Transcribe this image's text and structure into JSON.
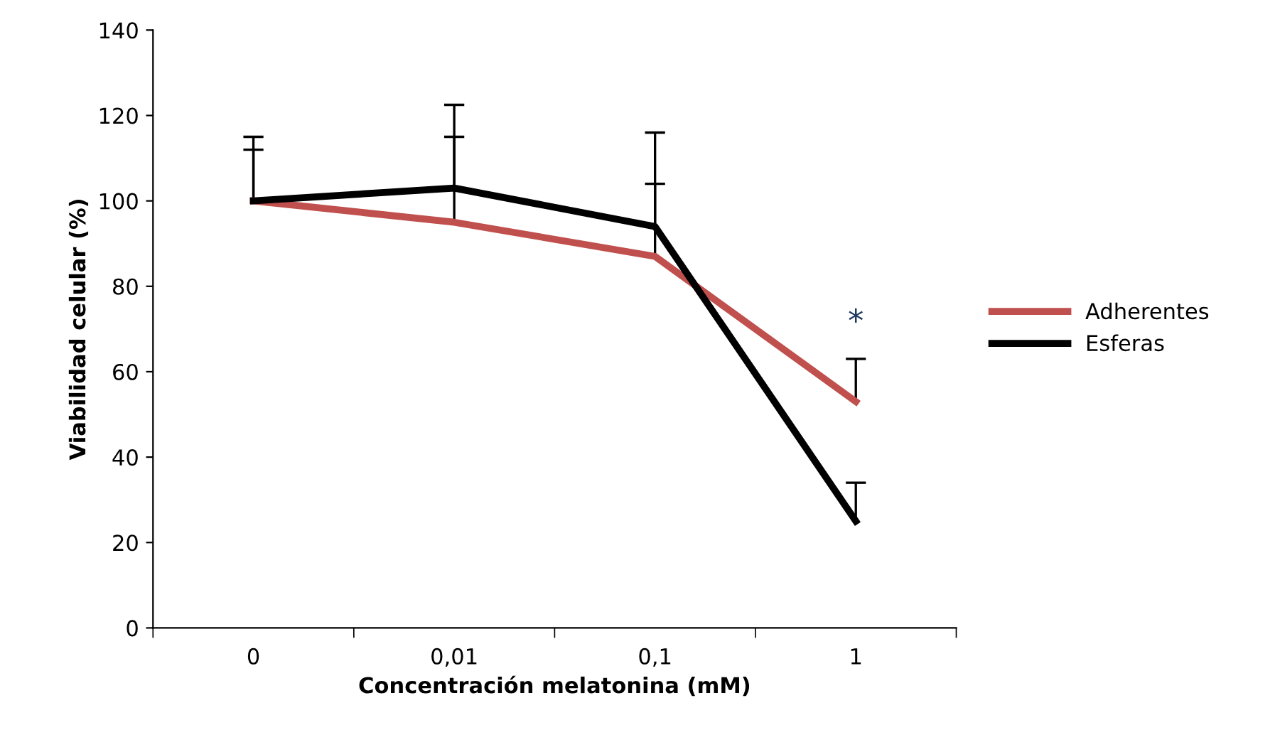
{
  "chart_data": {
    "type": "line",
    "xlabel": "Concentración melatonina (mM)",
    "ylabel": "Viabilidad celular (%)",
    "categories": [
      "0",
      "0,01",
      "0,1",
      "1"
    ],
    "series": [
      {
        "name": "Adherentes",
        "color": "#c0504d",
        "values": [
          100,
          95,
          87,
          53
        ],
        "errors": [
          [
            100,
            112
          ],
          [
            95,
            115
          ],
          [
            87,
            104
          ],
          [
            53,
            63
          ]
        ]
      },
      {
        "name": "Esferas",
        "color": "#000000",
        "values": [
          100,
          103,
          94,
          25
        ],
        "errors": [
          [
            100,
            115
          ],
          [
            103,
            122.5
          ],
          [
            94,
            116
          ],
          [
            25,
            34
          ]
        ]
      }
    ],
    "annotations": [
      "*"
    ],
    "ylim": [
      0,
      140
    ],
    "yticks": [
      0,
      20,
      40,
      60,
      80,
      100,
      120,
      140
    ],
    "grid": false,
    "legend": "right",
    "marker": "none"
  }
}
